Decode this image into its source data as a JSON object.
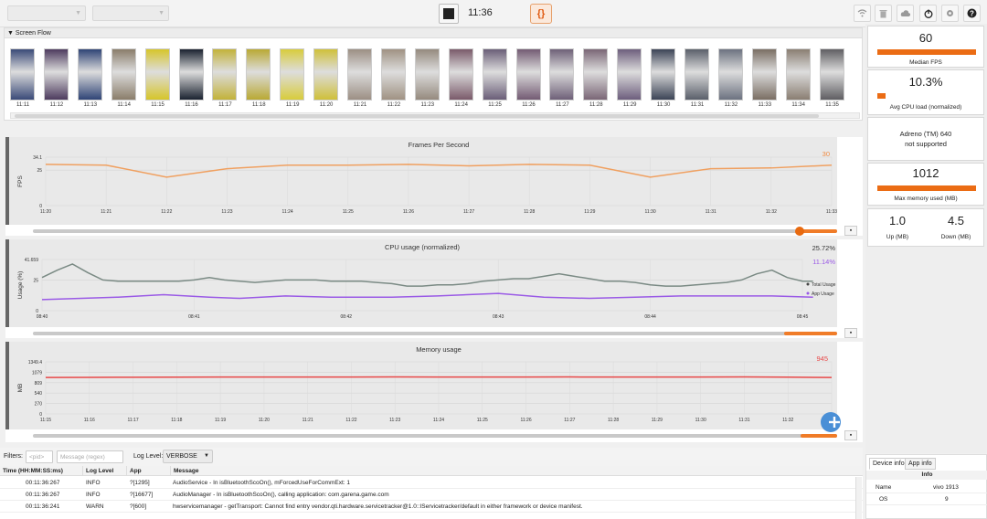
{
  "toolbar": {
    "device_placeholder": "",
    "app_placeholder": "",
    "clock": "11:36",
    "json_label": "{}"
  },
  "screen_flow": {
    "title": "Screen Flow",
    "times": [
      "11:11",
      "11:12",
      "11:13",
      "11:14",
      "11:15",
      "11:16",
      "11:17",
      "11:18",
      "11:19",
      "11:20",
      "11:21",
      "11:22",
      "11:23",
      "11:24",
      "11:25",
      "11:26",
      "11:27",
      "11:28",
      "11:29",
      "11:30",
      "11:31",
      "11:32",
      "11:33",
      "11:34",
      "11:35"
    ],
    "thumb_colors": [
      "#3a4a78",
      "#4d3b5e",
      "#2f4476",
      "#8a7d6a",
      "#d6c52a",
      "#1a2230",
      "#c2b23a",
      "#b9a934",
      "#d8cc3c",
      "#cfc03a",
      "#9c8f84",
      "#a09283",
      "#958a7e",
      "#7a5a6a",
      "#6a5e78",
      "#735b73",
      "#6e6078",
      "#7a6676",
      "#6d5e7d",
      "#3c4456",
      "#5a5f6a",
      "#6c7280",
      "#7a6e63",
      "#8a7e72",
      "#5f5e62"
    ]
  },
  "fps_chart": {
    "title": "Frames Per Second",
    "ylabel": "FPS",
    "current": "30"
  },
  "cpu_chart": {
    "title": "CPU usage (normalized)",
    "ylabel": "Usage (%)",
    "total_value": "25.72%",
    "app_value": "11.14%",
    "legend_total": "Total Usage",
    "legend_app": "App Usage"
  },
  "mem_chart": {
    "title": "Memory usage",
    "ylabel": "MB",
    "current": "945"
  },
  "chart_data": [
    {
      "type": "line",
      "title": "Frames Per Second",
      "ylabel": "FPS",
      "ylim": [
        0,
        34.1
      ],
      "yticks": [
        "34.1",
        "25",
        "0"
      ],
      "x": [
        "11:20",
        "11:21",
        "11:22",
        "11:23",
        "11:24",
        "11:25",
        "11:26",
        "11:27",
        "11:28",
        "11:29",
        "11:30",
        "11:31",
        "11:32",
        "11:33"
      ],
      "series": [
        {
          "values": [
            29,
            28.5,
            20,
            26,
            28.5,
            28.5,
            29,
            28,
            29,
            28.5,
            20,
            26,
            26.5,
            28.5
          ]
        }
      ],
      "color": "#f0a060",
      "grid": true
    },
    {
      "type": "line",
      "title": "CPU usage (normalized)",
      "ylabel": "Usage (%)",
      "ylim": [
        0,
        41.659
      ],
      "yticks": [
        "41.659",
        "25",
        "0"
      ],
      "x": [
        "08:40",
        "08:41",
        "08:42",
        "08:43",
        "08:44",
        "08:45"
      ],
      "series": [
        {
          "name": "Total Usage",
          "color": "#7a8a84",
          "x": [
            0,
            0.1,
            0.2,
            0.3,
            0.4,
            0.5,
            0.6,
            0.7,
            0.8,
            0.9,
            1.0,
            1.1,
            1.2,
            1.3,
            1.4,
            1.5,
            1.6,
            1.7,
            1.8,
            1.9,
            2.0,
            2.1,
            2.2,
            2.3,
            2.4,
            2.5,
            2.6,
            2.7,
            2.8,
            2.9,
            3.0,
            3.1,
            3.2,
            3.3,
            3.4,
            3.5,
            3.6,
            3.7,
            3.8,
            3.9,
            4.0,
            4.1,
            4.2,
            4.3,
            4.4,
            4.5,
            4.6,
            4.7,
            4.8,
            4.9,
            5.0,
            5.07
          ],
          "values": [
            27,
            33,
            38,
            31,
            25,
            24,
            24,
            24,
            24,
            24,
            25,
            27,
            25,
            24,
            23,
            24,
            25,
            25,
            25,
            24,
            24,
            24,
            23,
            22,
            20,
            20,
            21,
            21,
            22,
            24,
            25,
            26,
            26,
            28,
            30,
            28,
            26,
            24,
            24,
            23,
            21,
            20,
            20,
            21,
            22,
            23,
            25,
            30,
            33,
            27,
            24,
            24
          ]
        },
        {
          "name": "App Usage",
          "color": "#9a5ae6",
          "x": [
            0,
            0.5,
            0.8,
            1.1,
            1.3,
            1.6,
            1.9,
            2.1,
            2.3,
            2.6,
            3.0,
            3.3,
            3.6,
            3.9,
            4.2,
            4.5,
            4.8,
            5.07
          ],
          "values": [
            9,
            11,
            13,
            11,
            10,
            12,
            11,
            11,
            11,
            12,
            14,
            11,
            10,
            11,
            12,
            12,
            12,
            11
          ]
        }
      ],
      "grid": true
    },
    {
      "type": "line",
      "title": "Memory usage",
      "ylabel": "MB",
      "ylim": [
        0,
        1349.4
      ],
      "yticks": [
        "1349.4",
        "1079",
        "809",
        "540",
        "270",
        "0"
      ],
      "x": [
        "11:15",
        "11:16",
        "11:17",
        "11:18",
        "11:19",
        "11:20",
        "11:21",
        "11:22",
        "11:23",
        "11:24",
        "11:25",
        "11:26",
        "11:27",
        "11:28",
        "11:29",
        "11:30",
        "11:31",
        "11:32",
        "11:33"
      ],
      "series": [
        {
          "values": [
            945,
            948,
            950,
            952,
            955,
            956,
            957,
            956,
            958,
            957,
            956,
            957,
            958,
            955,
            956,
            957,
            958,
            952,
            945
          ]
        }
      ],
      "color": "#e84848",
      "grid": true
    }
  ],
  "stats": {
    "median_fps": "60",
    "median_fps_label": "Median FPS",
    "median_fps_fill": 1.0,
    "avg_cpu": "10.3%",
    "avg_cpu_label": "Avg CPU load (normalized)",
    "avg_cpu_fill": 0.08,
    "gpu_name": "Adreno (TM) 640",
    "gpu_status": "not supported",
    "max_memory": "1012",
    "max_memory_label": "Max memory used (MB)",
    "max_memory_fill": 1.0,
    "up": "1.0",
    "up_label": "Up (MB)",
    "down": "4.5",
    "down_label": "Down (MB)"
  },
  "filters": {
    "label": "Filters:",
    "pid_placeholder": "<pid>",
    "message_placeholder": "Message (regex)",
    "loglevel_label": "Log Level:",
    "loglevel_value": "VERBOSE"
  },
  "log": {
    "headers": [
      "Time (HH:MM:SS:ms)",
      "Log Level",
      "App",
      "Message"
    ],
    "rows": [
      {
        "time": "00:11:36:267",
        "level": "INFO",
        "app": "?[1295]",
        "message": "AudioService - In isBluetoothScoOn(), mForcedUseForCommExt: 1"
      },
      {
        "time": "00:11:36:267",
        "level": "INFO",
        "app": "?[16677]",
        "message": "AudioManager - In isBluetoothScoOn(), calling application: com.garena.game.com"
      },
      {
        "time": "00:11:36:241",
        "level": "WARN",
        "app": "?[600]",
        "message": "hwservicemanager - getTransport: Cannot find entry vendor.qti.hardware.servicetracker@1.0::IServicetracker/default in either framework or device manifest."
      }
    ]
  },
  "device_info": {
    "tab_device": "Device info",
    "tab_app": "App info",
    "header": "Info",
    "rows": [
      {
        "key": "Name",
        "value": "vivo 1913"
      },
      {
        "key": "OS",
        "value": "9"
      }
    ]
  }
}
